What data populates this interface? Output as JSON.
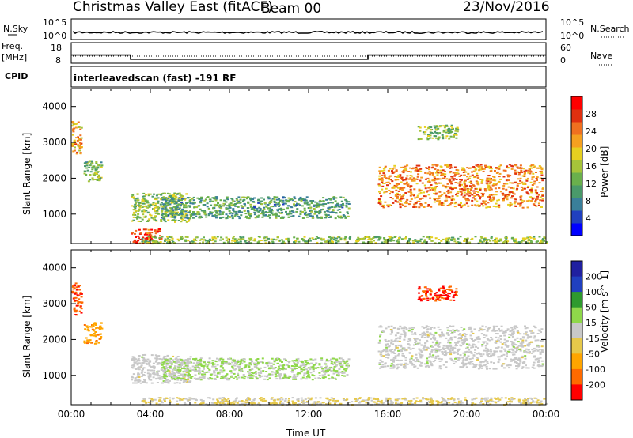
{
  "header": {
    "title": "Christmas Valley East (fitACF)",
    "beam": "Beam 00",
    "date": "23/Nov/2016"
  },
  "labels": {
    "nsky": "N.Sky",
    "nsearch": "N.Search",
    "freq": "Freq.",
    "freq_unit": "[MHz]",
    "nave": "Nave",
    "cpid": "CPID",
    "cpid_value": "interleavedscan (fast) -191 RF",
    "time_axis": "Time UT",
    "slant_range": "Slant Range [km]"
  },
  "chart_data": [
    {
      "type": "line",
      "name": "noise-panel",
      "left_ticks": [
        "10^5",
        "10^0"
      ],
      "right_ticks": [
        "10^5",
        "10^0"
      ],
      "left_label": "N.Sky",
      "right_label": "N.Search"
    },
    {
      "type": "line",
      "name": "freq-nave-panel",
      "left_ticks": [
        18,
        8
      ],
      "right_ticks": [
        60,
        0
      ],
      "frequency_steps": [
        {
          "from": "00:00",
          "to": "03:00",
          "value": 12
        },
        {
          "from": "03:00",
          "to": "15:00",
          "value": 10
        },
        {
          "from": "15:00",
          "to": "24:00",
          "value": 12
        }
      ]
    },
    {
      "type": "heatmap",
      "name": "power-panel",
      "xlim": [
        0,
        24
      ],
      "ylim": [
        180,
        4500
      ],
      "y_ticks": [
        1000,
        2000,
        3000,
        4000
      ],
      "colorbar": {
        "label": "Power [dB]",
        "ticks": [
          4,
          8,
          12,
          16,
          20,
          24,
          28
        ],
        "range": [
          0,
          30
        ]
      },
      "regions": [
        {
          "t0": 0.0,
          "t1": 0.5,
          "r0": 2700,
          "r1": 3600,
          "value": 20
        },
        {
          "t0": 0.6,
          "t1": 1.5,
          "r0": 1900,
          "r1": 2500,
          "value": 12
        },
        {
          "t0": 3.0,
          "t1": 6.0,
          "r0": 800,
          "r1": 1600,
          "value": 14
        },
        {
          "t0": 4.5,
          "t1": 14.0,
          "r0": 900,
          "r1": 1500,
          "value": 10
        },
        {
          "t0": 3.0,
          "t1": 4.5,
          "r0": 200,
          "r1": 600,
          "value": 26
        },
        {
          "t0": 3.5,
          "t1": 24.0,
          "r0": 200,
          "r1": 400,
          "value": 14
        },
        {
          "t0": 15.5,
          "t1": 23.8,
          "r0": 1200,
          "r1": 2400,
          "value": 22
        },
        {
          "t0": 17.5,
          "t1": 19.5,
          "r0": 3100,
          "r1": 3500,
          "value": 14
        }
      ]
    },
    {
      "type": "heatmap",
      "name": "velocity-panel",
      "xlim": [
        0,
        24
      ],
      "ylim": [
        180,
        4500
      ],
      "y_ticks": [
        1000,
        2000,
        3000,
        4000
      ],
      "x_ticks": [
        "00:00",
        "04:00",
        "08:00",
        "12:00",
        "16:00",
        "20:00",
        "00:00"
      ],
      "colorbar": {
        "label": "Velocity [m s^-1]",
        "ticks": [
          200,
          100,
          50,
          15,
          -15,
          -50,
          -100,
          -200
        ],
        "range": [
          -250,
          250
        ]
      },
      "regions": [
        {
          "t0": 0.0,
          "t1": 0.5,
          "r0": 2700,
          "r1": 3600,
          "value": -180
        },
        {
          "t0": 0.6,
          "t1": 1.5,
          "r0": 1900,
          "r1": 2500,
          "value": -120
        },
        {
          "t0": 3.0,
          "t1": 6.0,
          "r0": 800,
          "r1": 1600,
          "value": 0
        },
        {
          "t0": 4.5,
          "t1": 14.0,
          "r0": 900,
          "r1": 1500,
          "value": 30
        },
        {
          "t0": 3.5,
          "t1": 24.0,
          "r0": 200,
          "r1": 400,
          "value": -30
        },
        {
          "t0": 15.5,
          "t1": 23.8,
          "r0": 1200,
          "r1": 2400,
          "value": 0
        },
        {
          "t0": 17.5,
          "t1": 19.5,
          "r0": 3100,
          "r1": 3500,
          "value": -200
        }
      ]
    }
  ]
}
